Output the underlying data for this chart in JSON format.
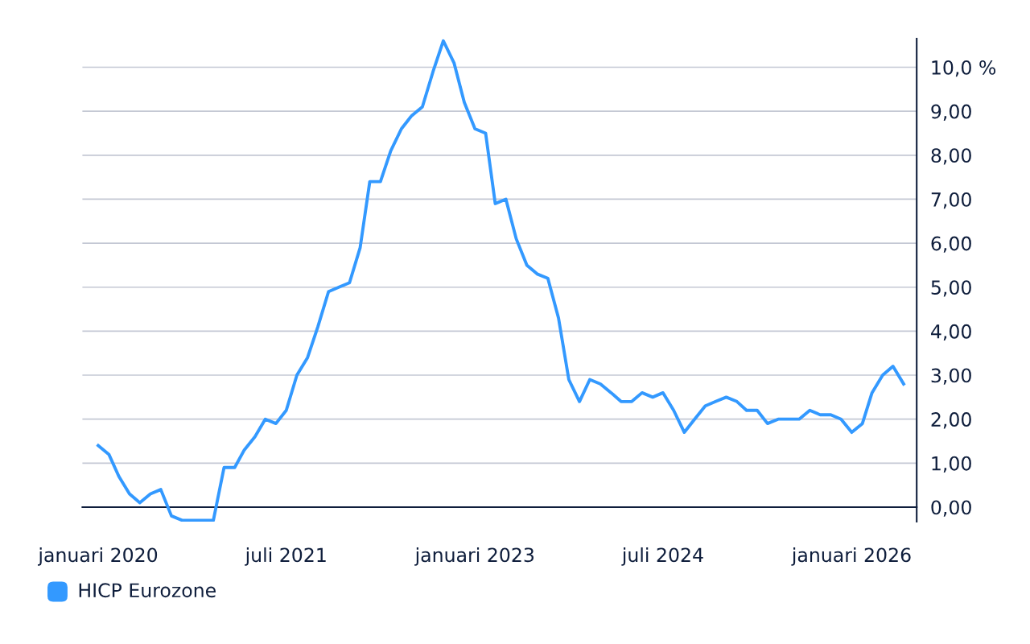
{
  "chart_data": {
    "type": "line",
    "x": [
      "2020-01",
      "2020-02",
      "2020-03",
      "2020-04",
      "2020-05",
      "2020-06",
      "2020-07",
      "2020-08",
      "2020-09",
      "2020-10",
      "2020-11",
      "2020-12",
      "2021-01",
      "2021-02",
      "2021-03",
      "2021-04",
      "2021-05",
      "2021-06",
      "2021-07",
      "2021-08",
      "2021-09",
      "2021-10",
      "2021-11",
      "2021-12",
      "2022-01",
      "2022-02",
      "2022-03",
      "2022-04",
      "2022-05",
      "2022-06",
      "2022-07",
      "2022-08",
      "2022-09",
      "2022-10",
      "2022-11",
      "2022-12",
      "2023-01",
      "2023-02",
      "2023-03",
      "2023-04",
      "2023-05",
      "2023-06",
      "2023-07",
      "2023-08",
      "2023-09",
      "2023-10",
      "2023-11",
      "2023-12",
      "2024-01",
      "2024-02",
      "2024-03",
      "2024-04",
      "2024-05",
      "2024-06",
      "2024-07",
      "2024-08",
      "2024-09",
      "2024-10",
      "2024-11",
      "2024-12",
      "2025-01",
      "2025-02",
      "2025-03",
      "2025-04",
      "2025-05",
      "2025-06",
      "2025-07",
      "2025-08",
      "2025-09",
      "2025-10",
      "2025-11",
      "2025-12",
      "2026-01",
      "2026-02",
      "2026-03",
      "2026-04",
      "2026-05",
      "2026-06"
    ],
    "series": [
      {
        "name": "HICP Eurozone",
        "color": "#3399ff",
        "values": [
          1.4,
          1.2,
          0.7,
          0.3,
          0.1,
          0.3,
          0.4,
          -0.2,
          -0.3,
          -0.3,
          -0.3,
          -0.3,
          0.9,
          0.9,
          1.3,
          1.6,
          2.0,
          1.9,
          2.2,
          3.0,
          3.4,
          4.1,
          4.9,
          5.0,
          5.1,
          5.9,
          7.4,
          7.4,
          8.1,
          8.6,
          8.9,
          9.1,
          9.9,
          10.6,
          10.1,
          9.2,
          8.6,
          8.5,
          6.9,
          7.0,
          6.1,
          5.5,
          5.3,
          5.2,
          4.3,
          2.9,
          2.4,
          2.9,
          2.8,
          2.6,
          2.4,
          2.4,
          2.6,
          2.5,
          2.6,
          2.2,
          1.7,
          2.0,
          2.3,
          2.4,
          2.5,
          2.4,
          2.2,
          2.2,
          1.9,
          2.0,
          2.0,
          2.0,
          2.2,
          2.1,
          2.1,
          2.0,
          1.7,
          1.9,
          2.6,
          3.0,
          3.2,
          2.8
        ]
      }
    ],
    "xlim": [
      "2019-11-16",
      "2026-07-09"
    ],
    "xticks": [
      {
        "value": "2020-01",
        "label": "januari 2020"
      },
      {
        "value": "2021-07",
        "label": "juli 2021"
      },
      {
        "value": "2023-01",
        "label": "januari 2023"
      },
      {
        "value": "2024-07",
        "label": "juli 2024"
      },
      {
        "value": "2026-01",
        "label": "januari 2026"
      }
    ],
    "ylim": [
      -0.33,
      10.65
    ],
    "yticks": [
      {
        "value": 0,
        "label": "0,00"
      },
      {
        "value": 1,
        "label": "1,00"
      },
      {
        "value": 2,
        "label": "2,00"
      },
      {
        "value": 3,
        "label": "3,00"
      },
      {
        "value": 4,
        "label": "4,00"
      },
      {
        "value": 5,
        "label": "5,00"
      },
      {
        "value": 6,
        "label": "6,00"
      },
      {
        "value": 7,
        "label": "7,00"
      },
      {
        "value": 8,
        "label": "8,00"
      },
      {
        "value": 9,
        "label": "9,00"
      },
      {
        "value": 10,
        "label": "10,0 %"
      }
    ],
    "grid": "y",
    "legend": "bottom left",
    "marker": "none",
    "line_style": "solid"
  }
}
